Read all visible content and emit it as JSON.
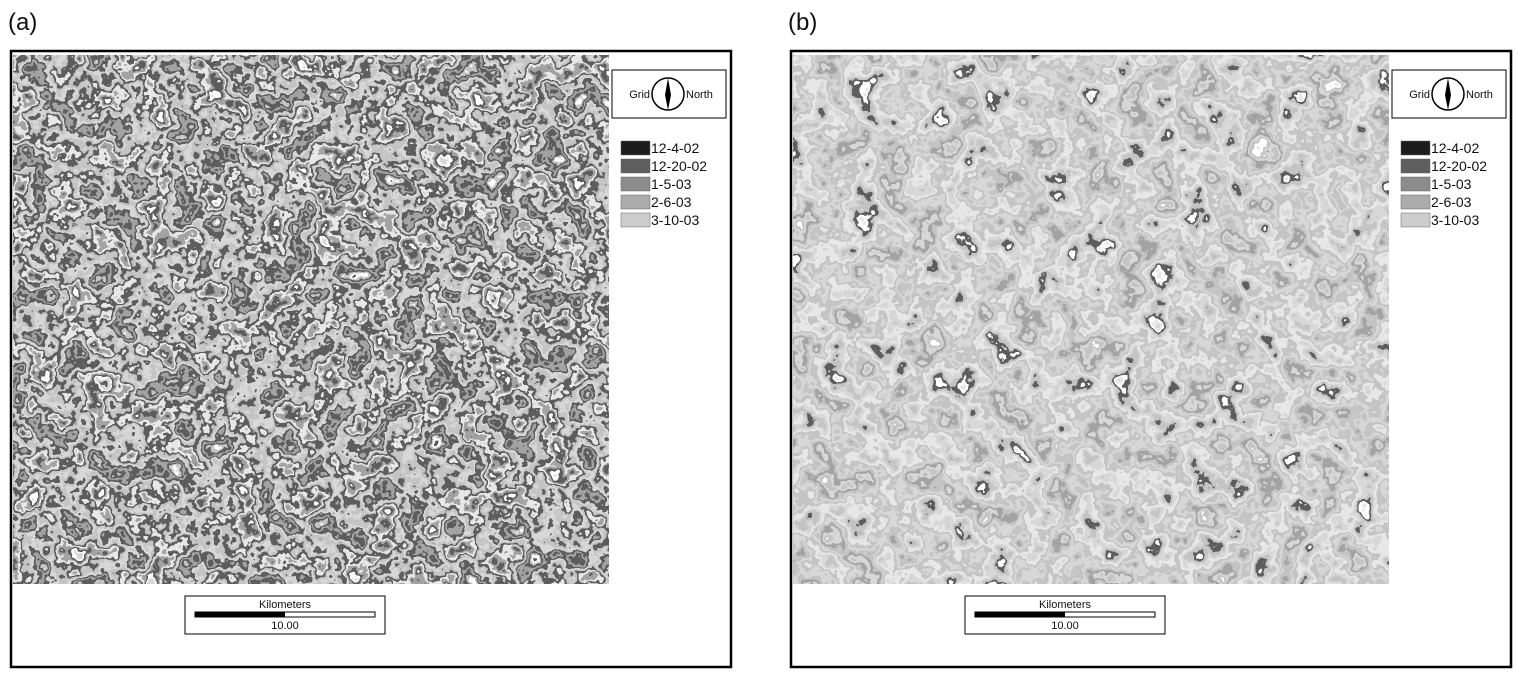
{
  "panels": [
    {
      "label": "(a)",
      "compass": {
        "left": "Grid",
        "right": "North"
      },
      "legend": [
        {
          "label": "12-4-02",
          "color": "#1c1c1c"
        },
        {
          "label": "12-20-02",
          "color": "#5e5e5e"
        },
        {
          "label": "1-5-03",
          "color": "#8c8c8c"
        },
        {
          "label": "2-6-03",
          "color": "#ababab"
        },
        {
          "label": "3-10-03",
          "color": "#cdcdcd"
        }
      ],
      "scale_bar": {
        "title": "Kilometers",
        "label": "10.00"
      }
    },
    {
      "label": "(b)",
      "compass": {
        "left": "Grid",
        "right": "North"
      },
      "legend": [
        {
          "label": "12-4-02",
          "color": "#1c1c1c"
        },
        {
          "label": "12-20-02",
          "color": "#5e5e5e"
        },
        {
          "label": "1-5-03",
          "color": "#8c8c8c"
        },
        {
          "label": "2-6-03",
          "color": "#ababab"
        },
        {
          "label": "3-10-03",
          "color": "#cdcdcd"
        }
      ],
      "scale_bar": {
        "title": "Kilometers",
        "label": "10.00"
      }
    }
  ]
}
